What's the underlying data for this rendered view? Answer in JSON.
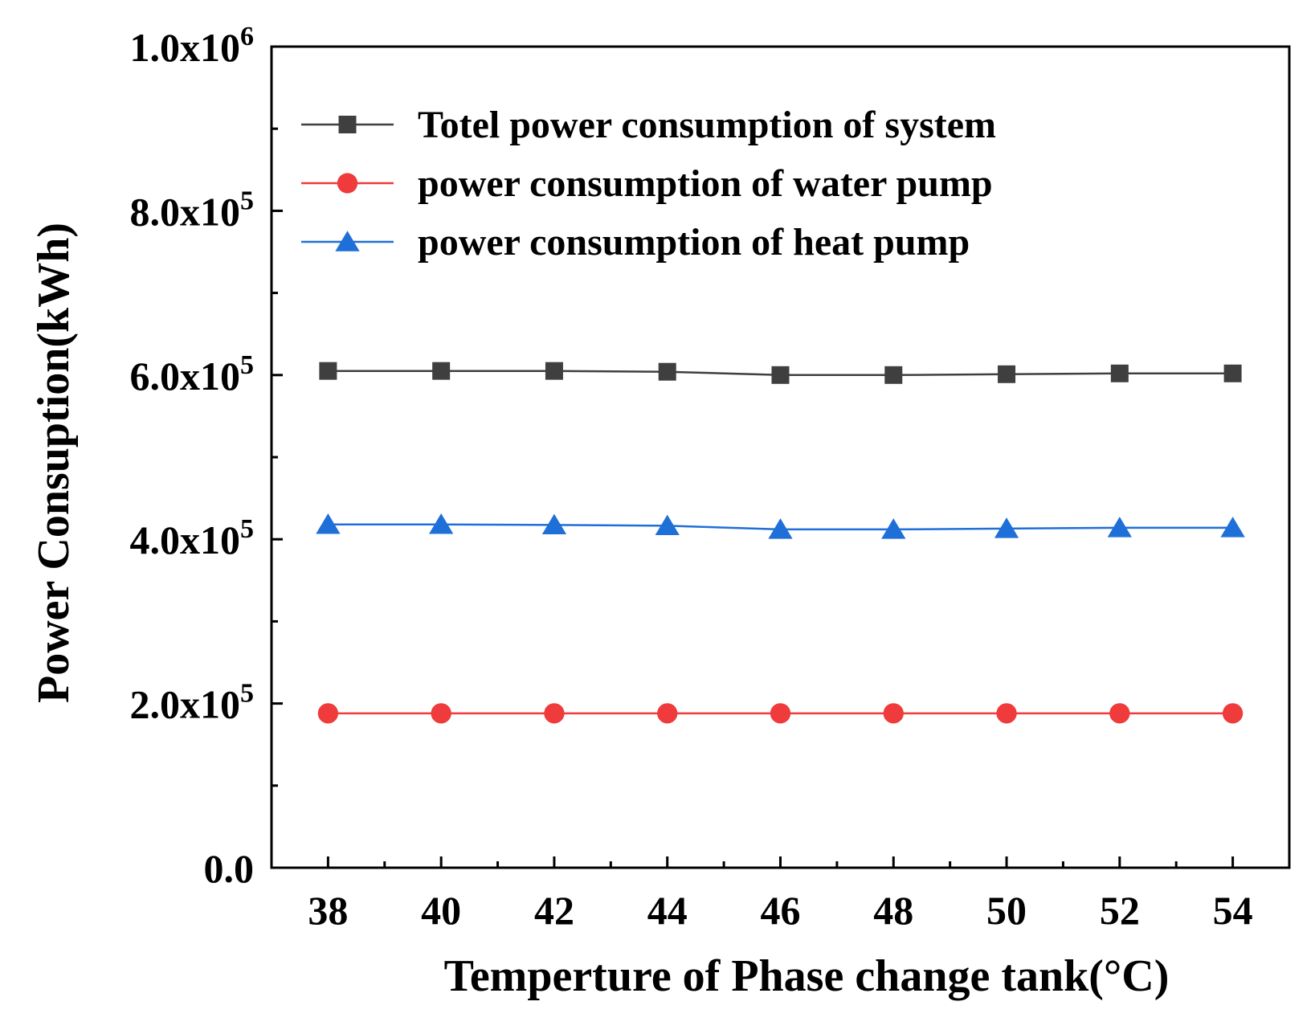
{
  "chart_data": {
    "type": "line",
    "xlabel": "Temperture of Phase change tank(°C)",
    "ylabel": "Power Consuption(kWh)",
    "x": [
      38,
      40,
      42,
      44,
      46,
      48,
      50,
      52,
      54
    ],
    "xlim": [
      37,
      55
    ],
    "ylim": [
      0,
      1000000
    ],
    "y_ticks": [
      {
        "value": 0,
        "mantissa": "0.0",
        "exponent": ""
      },
      {
        "value": 200000,
        "mantissa": "2.0x10",
        "exponent": "5"
      },
      {
        "value": 400000,
        "mantissa": "4.0x10",
        "exponent": "5"
      },
      {
        "value": 600000,
        "mantissa": "6.0x10",
        "exponent": "5"
      },
      {
        "value": 800000,
        "mantissa": "8.0x10",
        "exponent": "5"
      },
      {
        "value": 1000000,
        "mantissa": "1.0x10",
        "exponent": "6"
      }
    ],
    "legend_position": "top-left",
    "grid": false,
    "series": [
      {
        "name": "Totel power consumption of system",
        "color": "#3f3f3f",
        "marker": "square",
        "values": [
          605000,
          605000,
          605000,
          604000,
          600000,
          600000,
          601000,
          602000,
          602000
        ]
      },
      {
        "name": "power consumption of water pump",
        "color": "#ef3b3b",
        "marker": "circle",
        "values": [
          188000,
          188000,
          188000,
          188000,
          188000,
          188000,
          188000,
          188000,
          188000
        ]
      },
      {
        "name": "power consumption of heat pump",
        "color": "#1f6fd8",
        "marker": "triangle",
        "values": [
          418000,
          418000,
          417500,
          416500,
          412000,
          412000,
          413000,
          414000,
          414000
        ]
      }
    ]
  }
}
